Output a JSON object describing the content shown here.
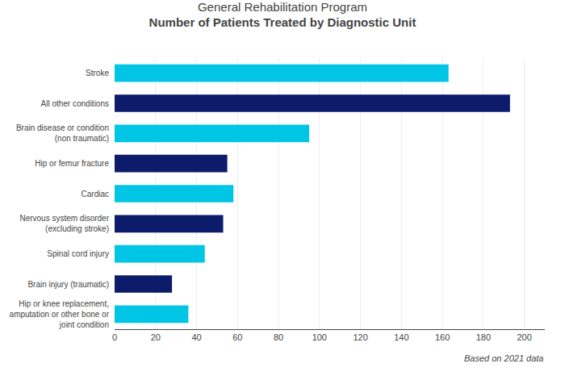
{
  "chart_data": {
    "type": "bar",
    "orientation": "horizontal",
    "title": "General Rehabilitation Program",
    "subtitle": "Number of Patients Treated by Diagnostic Unit",
    "categories": [
      "Stroke",
      "All other conditions",
      "Brain disease or condition\n(non traumatic)",
      "Hip or femur fracture",
      "Cardiac",
      "Nervous system disorder\n(excluding stroke)",
      "Spinal cord injury",
      "Brain injury (traumatic)",
      "Hip or knee replacement,\namputation or other bone or\njoint condition"
    ],
    "values": [
      163,
      193,
      95,
      55,
      58,
      53,
      44,
      28,
      36
    ],
    "colors": [
      "#00C5E5",
      "#0D1B6B",
      "#00C5E5",
      "#0D1B6B",
      "#00C5E5",
      "#0D1B6B",
      "#00C5E5",
      "#0D1B6B",
      "#00C5E5"
    ],
    "xlim": [
      0,
      210
    ],
    "xticks": [
      0,
      20,
      40,
      60,
      80,
      100,
      120,
      140,
      160,
      180,
      200
    ],
    "grid": true,
    "annotations": [
      "Based on 2021 data"
    ]
  }
}
